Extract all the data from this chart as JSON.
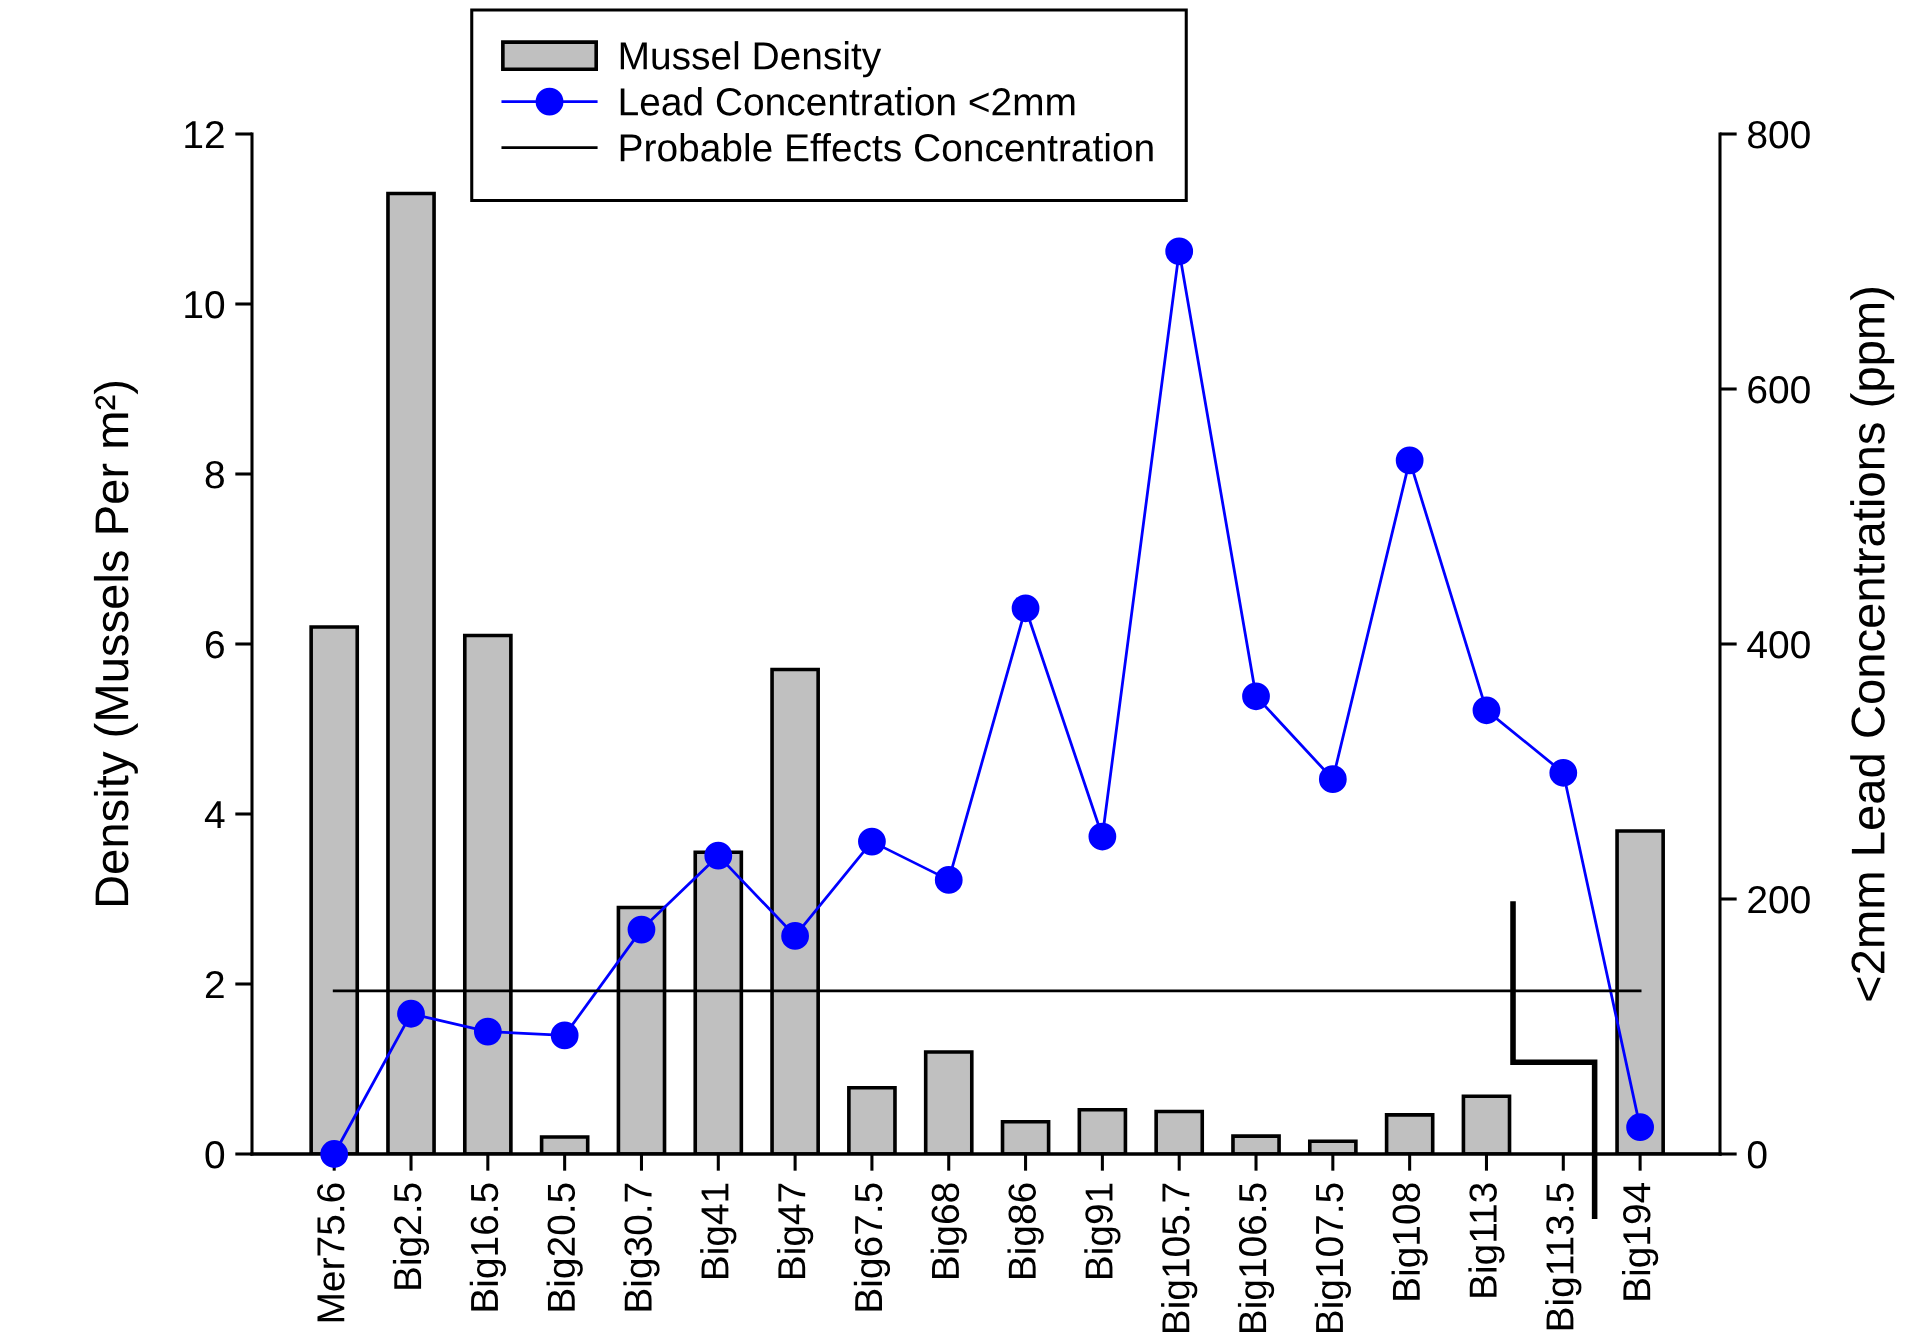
{
  "chart_data": {
    "type": "bar",
    "categories": [
      "Mer75.6",
      "Big2.5",
      "Big16.5",
      "Big20.5",
      "Big30.7",
      "Big41",
      "Big47",
      "Big67.5",
      "Big68",
      "Big86",
      "Big91",
      "Big105.7",
      "Big106.5",
      "Big107.5",
      "Big108",
      "Big113",
      "Big113.5",
      "Big194"
    ],
    "series": [
      {
        "name": "Mussel Density",
        "color": "#c0c0c0",
        "values": [
          6.2,
          11.3,
          6.1,
          0.2,
          2.9,
          3.55,
          5.7,
          0.78,
          1.2,
          0.38,
          0.52,
          0.5,
          0.21,
          0.15,
          0.46,
          0.68,
          null,
          3.8
        ]
      },
      {
        "name": "Lead Concentration <2mm",
        "type": "line",
        "axis": "y2",
        "color": "#0000ff",
        "marker": "circle",
        "values": [
          0,
          110,
          96,
          93,
          176,
          234,
          171,
          245,
          215,
          428,
          249,
          708,
          359,
          294,
          544,
          348,
          299,
          21
        ]
      },
      {
        "name": "Probable Effects Concentration",
        "type": "line",
        "axis": "y2",
        "color": "#000000",
        "marker": "none",
        "values": [
          128,
          128,
          128,
          128,
          128,
          128,
          128,
          128,
          128,
          128,
          128,
          128,
          128,
          128,
          128,
          128,
          128,
          128
        ]
      }
    ],
    "ylabel": "Density (Mussels Per m²)",
    "y2label": "<2mm Lead Concentrations (ppm)",
    "ylim": [
      0,
      12
    ],
    "yticks": [
      0,
      2,
      4,
      6,
      8,
      10,
      12
    ],
    "y2lim": [
      0,
      800
    ],
    "y2ticks": [
      0,
      200,
      400,
      600,
      800
    ],
    "grid": false,
    "legend": "top"
  }
}
